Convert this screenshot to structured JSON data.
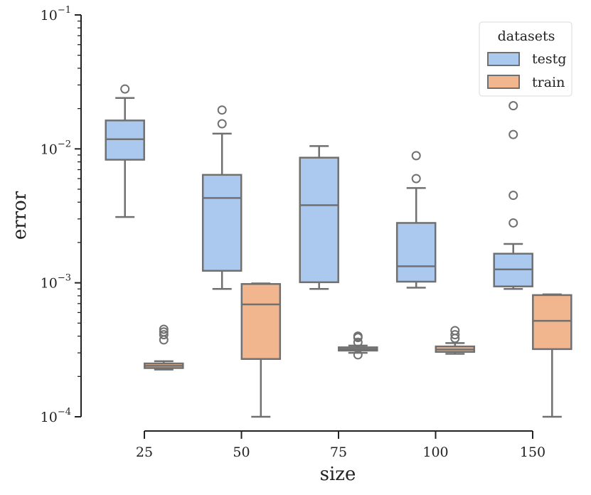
{
  "chart_data": {
    "type": "boxplot",
    "xlabel": "size",
    "ylabel": "error",
    "yscale": "log",
    "ylim": [
      0.0001,
      0.1
    ],
    "y_ticks": [
      {
        "value": 0.1,
        "base": "10",
        "exp": "−1"
      },
      {
        "value": 0.01,
        "base": "10",
        "exp": "−2"
      },
      {
        "value": 0.001,
        "base": "10",
        "exp": "−3"
      },
      {
        "value": 0.0001,
        "base": "10",
        "exp": "−4"
      }
    ],
    "categories": [
      "25",
      "50",
      "75",
      "100",
      "150"
    ],
    "legend": {
      "title": "datasets",
      "position": "top-right"
    },
    "series": [
      {
        "name": "testg",
        "color": "#abc9ef",
        "boxes": [
          {
            "whislo": 0.0031,
            "q1": 0.0083,
            "med": 0.0118,
            "q3": 0.0163,
            "whishi": 0.024,
            "fliers": [
              0.028
            ]
          },
          {
            "whislo": 0.0009,
            "q1": 0.00123,
            "med": 0.0043,
            "q3": 0.0064,
            "whishi": 0.013,
            "fliers": [
              0.0154,
              0.0195
            ]
          },
          {
            "whislo": 0.0009,
            "q1": 0.00101,
            "med": 0.0038,
            "q3": 0.0086,
            "whishi": 0.0105,
            "fliers": []
          },
          {
            "whislo": 0.00092,
            "q1": 0.00102,
            "med": 0.00133,
            "q3": 0.0028,
            "whishi": 0.0051,
            "fliers": [
              0.006,
              0.0089
            ]
          },
          {
            "whislo": 0.0009,
            "q1": 0.00094,
            "med": 0.00126,
            "q3": 0.00165,
            "whishi": 0.00195,
            "fliers": [
              0.0028,
              0.0045,
              0.0128,
              0.021
            ]
          }
        ]
      },
      {
        "name": "train",
        "color": "#f2b68e",
        "boxes": [
          {
            "whislo": 0.000225,
            "q1": 0.000231,
            "med": 0.00024,
            "q3": 0.00025,
            "whishi": 0.00026,
            "fliers": [
              0.000375,
              0.00041,
              0.00043,
              0.00045
            ]
          },
          {
            "whislo": 0.0001,
            "q1": 0.00027,
            "med": 0.00069,
            "q3": 0.00098,
            "whishi": 0.00099,
            "fliers": []
          },
          {
            "whislo": 0.0003,
            "q1": 0.000312,
            "med": 0.00032,
            "q3": 0.00033,
            "whishi": 0.00034,
            "fliers": [
              0.00029,
              0.00036,
              0.00039,
              0.0004
            ]
          },
          {
            "whislo": 0.000295,
            "q1": 0.000305,
            "med": 0.000318,
            "q3": 0.000335,
            "whishi": 0.000355,
            "fliers": [
              0.000385,
              0.00041,
              0.00044
            ]
          },
          {
            "whislo": 0.0001,
            "q1": 0.00032,
            "med": 0.00052,
            "q3": 0.00081,
            "whishi": 0.00082,
            "fliers": []
          }
        ]
      }
    ]
  }
}
